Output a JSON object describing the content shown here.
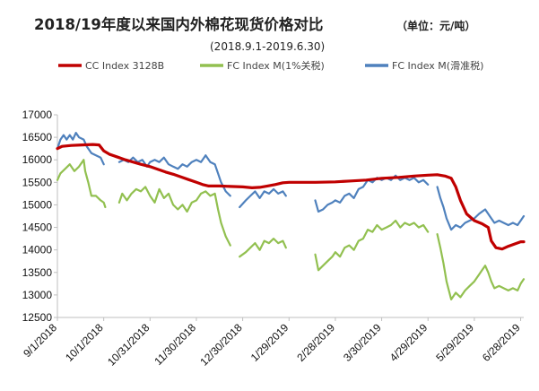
{
  "chart_data": {
    "type": "line",
    "title": "2018/19年度以来国内外棉花现货价格对比",
    "unit": "（单位：元/吨）",
    "subtitle": "(2018.9.1-2019.6.30)",
    "ylim": [
      12500,
      17000
    ],
    "yticks": [
      12500,
      13000,
      13500,
      14000,
      14500,
      15000,
      15500,
      16000,
      16500,
      17000
    ],
    "xlim": [
      "2018-09-01",
      "2019-06-30"
    ],
    "xticks": [
      "9/1/2018",
      "10/1/2018",
      "10/31/2018",
      "11/30/2018",
      "12/30/2018",
      "1/29/2019",
      "2/28/2019",
      "3/30/2019",
      "4/29/2019",
      "5/29/2019",
      "6/28/2019"
    ],
    "grid": false,
    "legend_position": "top",
    "series": [
      {
        "name": "CC Index 3128B",
        "color": "#c00000",
        "points": [
          [
            "2018-09-01",
            16250
          ],
          [
            "2018-09-04",
            16300
          ],
          [
            "2018-09-10",
            16320
          ],
          [
            "2018-09-17",
            16330
          ],
          [
            "2018-09-24",
            16340
          ],
          [
            "2018-09-28",
            16330
          ],
          [
            "2018-10-01",
            16200
          ],
          [
            "2018-10-05",
            16120
          ],
          [
            "2018-10-10",
            16060
          ],
          [
            "2018-10-15",
            16000
          ],
          [
            "2018-10-20",
            15950
          ],
          [
            "2018-10-25",
            15900
          ],
          [
            "2018-10-31",
            15850
          ],
          [
            "2018-11-05",
            15790
          ],
          [
            "2018-11-10",
            15730
          ],
          [
            "2018-11-15",
            15680
          ],
          [
            "2018-11-20",
            15620
          ],
          [
            "2018-11-25",
            15560
          ],
          [
            "2018-11-30",
            15500
          ],
          [
            "2018-12-04",
            15450
          ],
          [
            "2018-12-08",
            15420
          ],
          [
            "2018-12-15",
            15420
          ],
          [
            "2018-12-22",
            15410
          ],
          [
            "2018-12-30",
            15400
          ],
          [
            "2019-01-05",
            15380
          ],
          [
            "2019-01-10",
            15390
          ],
          [
            "2019-01-15",
            15420
          ],
          [
            "2019-01-20",
            15450
          ],
          [
            "2019-01-25",
            15490
          ],
          [
            "2019-01-29",
            15500
          ],
          [
            "2019-02-05",
            15500
          ],
          [
            "2019-02-15",
            15500
          ],
          [
            "2019-02-28",
            15510
          ],
          [
            "2019-03-10",
            15530
          ],
          [
            "2019-03-20",
            15550
          ],
          [
            "2019-03-30",
            15590
          ],
          [
            "2019-04-10",
            15610
          ],
          [
            "2019-04-20",
            15640
          ],
          [
            "2019-04-29",
            15660
          ],
          [
            "2019-05-05",
            15670
          ],
          [
            "2019-05-10",
            15640
          ],
          [
            "2019-05-14",
            15590
          ],
          [
            "2019-05-17",
            15400
          ],
          [
            "2019-05-20",
            15100
          ],
          [
            "2019-05-24",
            14800
          ],
          [
            "2019-05-29",
            14650
          ],
          [
            "2019-06-03",
            14580
          ],
          [
            "2019-06-07",
            14500
          ],
          [
            "2019-06-09",
            14200
          ],
          [
            "2019-06-12",
            14050
          ],
          [
            "2019-06-16",
            14020
          ],
          [
            "2019-06-20",
            14080
          ],
          [
            "2019-06-24",
            14130
          ],
          [
            "2019-06-28",
            14180
          ],
          [
            "2019-06-30",
            14180
          ]
        ]
      },
      {
        "name": "FC Index M(1%关税)",
        "color": "#92c050",
        "points": [
          [
            "2018-09-01",
            15550
          ],
          [
            "2018-09-03",
            15700
          ],
          [
            "2018-09-06",
            15800
          ],
          [
            "2018-09-09",
            15900
          ],
          [
            "2018-09-12",
            15750
          ],
          [
            "2018-09-15",
            15850
          ],
          [
            "2018-09-18",
            16000
          ],
          [
            "2018-09-19",
            15750
          ],
          [
            "2018-09-21",
            15500
          ],
          [
            "2018-09-23",
            15200
          ],
          [
            "2018-09-26",
            15200
          ],
          [
            "2018-09-29",
            15100
          ],
          [
            "2018-10-01",
            15050
          ],
          [
            "2018-10-02",
            14950
          ],
          [
            "2018-10-03",
            null
          ],
          [
            "2018-10-10",
            null
          ],
          [
            "2018-10-11",
            15050
          ],
          [
            "2018-10-13",
            15250
          ],
          [
            "2018-10-16",
            15100
          ],
          [
            "2018-10-19",
            15250
          ],
          [
            "2018-10-22",
            15350
          ],
          [
            "2018-10-25",
            15300
          ],
          [
            "2018-10-28",
            15400
          ],
          [
            "2018-10-31",
            15200
          ],
          [
            "2018-11-03",
            15050
          ],
          [
            "2018-11-06",
            15350
          ],
          [
            "2018-11-09",
            15150
          ],
          [
            "2018-11-12",
            15250
          ],
          [
            "2018-11-15",
            15000
          ],
          [
            "2018-11-18",
            14900
          ],
          [
            "2018-11-21",
            15000
          ],
          [
            "2018-11-24",
            14850
          ],
          [
            "2018-11-27",
            15050
          ],
          [
            "2018-11-30",
            15100
          ],
          [
            "2018-12-03",
            15250
          ],
          [
            "2018-12-06",
            15300
          ],
          [
            "2018-12-09",
            15200
          ],
          [
            "2018-12-12",
            15250
          ],
          [
            "2018-12-14",
            14900
          ],
          [
            "2018-12-16",
            14600
          ],
          [
            "2018-12-19",
            14300
          ],
          [
            "2018-12-22",
            14100
          ],
          [
            "2018-12-24",
            null
          ],
          [
            "2018-12-27",
            null
          ],
          [
            "2018-12-28",
            13850
          ],
          [
            "2019-01-01",
            13950
          ],
          [
            "2019-01-04",
            14050
          ],
          [
            "2019-01-07",
            14150
          ],
          [
            "2019-01-10",
            14000
          ],
          [
            "2019-01-13",
            14200
          ],
          [
            "2019-01-16",
            14150
          ],
          [
            "2019-01-19",
            14250
          ],
          [
            "2019-01-22",
            14150
          ],
          [
            "2019-01-25",
            14200
          ],
          [
            "2019-01-27",
            14050
          ],
          [
            "2019-01-28",
            null
          ],
          [
            "2019-02-14",
            null
          ],
          [
            "2019-02-15",
            13900
          ],
          [
            "2019-02-17",
            13550
          ],
          [
            "2019-02-20",
            13650
          ],
          [
            "2019-02-23",
            13750
          ],
          [
            "2019-02-26",
            13850
          ],
          [
            "2019-02-28",
            13950
          ],
          [
            "2019-03-03",
            13850
          ],
          [
            "2019-03-06",
            14050
          ],
          [
            "2019-03-09",
            14100
          ],
          [
            "2019-03-12",
            14000
          ],
          [
            "2019-03-15",
            14200
          ],
          [
            "2019-03-18",
            14250
          ],
          [
            "2019-03-21",
            14450
          ],
          [
            "2019-03-24",
            14400
          ],
          [
            "2019-03-27",
            14550
          ],
          [
            "2019-03-30",
            14450
          ],
          [
            "2019-04-02",
            14500
          ],
          [
            "2019-04-05",
            14550
          ],
          [
            "2019-04-08",
            14650
          ],
          [
            "2019-04-11",
            14500
          ],
          [
            "2019-04-14",
            14600
          ],
          [
            "2019-04-17",
            14550
          ],
          [
            "2019-04-20",
            14600
          ],
          [
            "2019-04-23",
            14500
          ],
          [
            "2019-04-26",
            14550
          ],
          [
            "2019-04-29",
            14400
          ],
          [
            "2019-04-30",
            null
          ],
          [
            "2019-05-04",
            null
          ],
          [
            "2019-05-05",
            14350
          ],
          [
            "2019-05-07",
            14050
          ],
          [
            "2019-05-09",
            13700
          ],
          [
            "2019-05-11",
            13300
          ],
          [
            "2019-05-14",
            12900
          ],
          [
            "2019-05-17",
            13050
          ],
          [
            "2019-05-20",
            12950
          ],
          [
            "2019-05-23",
            13100
          ],
          [
            "2019-05-26",
            13200
          ],
          [
            "2019-05-29",
            13300
          ],
          [
            "2019-06-01",
            13450
          ],
          [
            "2019-06-03",
            13550
          ],
          [
            "2019-06-05",
            13650
          ],
          [
            "2019-06-07",
            13500
          ],
          [
            "2019-06-09",
            13300
          ],
          [
            "2019-06-11",
            13150
          ],
          [
            "2019-06-14",
            13200
          ],
          [
            "2019-06-17",
            13150
          ],
          [
            "2019-06-20",
            13100
          ],
          [
            "2019-06-23",
            13150
          ],
          [
            "2019-06-26",
            13100
          ],
          [
            "2019-06-28",
            13250
          ],
          [
            "2019-06-30",
            13350
          ]
        ]
      },
      {
        "name": "FC Index M(滑准税)",
        "color": "#4f81bd",
        "points": [
          [
            "2018-09-01",
            16250
          ],
          [
            "2018-09-03",
            16450
          ],
          [
            "2018-09-05",
            16550
          ],
          [
            "2018-09-07",
            16450
          ],
          [
            "2018-09-09",
            16550
          ],
          [
            "2018-09-11",
            16450
          ],
          [
            "2018-09-13",
            16600
          ],
          [
            "2018-09-15",
            16500
          ],
          [
            "2018-09-18",
            16450
          ],
          [
            "2018-09-20",
            16300
          ],
          [
            "2018-09-23",
            16150
          ],
          [
            "2018-09-26",
            16100
          ],
          [
            "2018-09-29",
            16050
          ],
          [
            "2018-10-01",
            15900
          ],
          [
            "2018-10-02",
            null
          ],
          [
            "2018-10-10",
            null
          ],
          [
            "2018-10-11",
            15950
          ],
          [
            "2018-10-14",
            16000
          ],
          [
            "2018-10-17",
            15950
          ],
          [
            "2018-10-20",
            16050
          ],
          [
            "2018-10-23",
            15950
          ],
          [
            "2018-10-26",
            16000
          ],
          [
            "2018-10-29",
            15850
          ],
          [
            "2018-10-31",
            15950
          ],
          [
            "2018-11-03",
            16000
          ],
          [
            "2018-11-06",
            15950
          ],
          [
            "2018-11-09",
            16050
          ],
          [
            "2018-11-12",
            15900
          ],
          [
            "2018-11-15",
            15850
          ],
          [
            "2018-11-18",
            15800
          ],
          [
            "2018-11-21",
            15900
          ],
          [
            "2018-11-24",
            15850
          ],
          [
            "2018-11-27",
            15950
          ],
          [
            "2018-11-30",
            16000
          ],
          [
            "2018-12-03",
            15950
          ],
          [
            "2018-12-06",
            16100
          ],
          [
            "2018-12-09",
            15950
          ],
          [
            "2018-12-12",
            15900
          ],
          [
            "2018-12-14",
            15700
          ],
          [
            "2018-12-16",
            15500
          ],
          [
            "2018-12-19",
            15300
          ],
          [
            "2018-12-22",
            15200
          ],
          [
            "2018-12-24",
            null
          ],
          [
            "2018-12-27",
            null
          ],
          [
            "2018-12-28",
            14950
          ],
          [
            "2019-01-01",
            15100
          ],
          [
            "2019-01-04",
            15200
          ],
          [
            "2019-01-07",
            15300
          ],
          [
            "2019-01-10",
            15150
          ],
          [
            "2019-01-13",
            15300
          ],
          [
            "2019-01-16",
            15250
          ],
          [
            "2019-01-19",
            15350
          ],
          [
            "2019-01-22",
            15250
          ],
          [
            "2019-01-25",
            15300
          ],
          [
            "2019-01-27",
            15200
          ],
          [
            "2019-01-28",
            null
          ],
          [
            "2019-02-14",
            null
          ],
          [
            "2019-02-15",
            15100
          ],
          [
            "2019-02-17",
            14850
          ],
          [
            "2019-02-20",
            14900
          ],
          [
            "2019-02-23",
            15000
          ],
          [
            "2019-02-26",
            15050
          ],
          [
            "2019-02-28",
            15100
          ],
          [
            "2019-03-03",
            15050
          ],
          [
            "2019-03-06",
            15200
          ],
          [
            "2019-03-09",
            15250
          ],
          [
            "2019-03-12",
            15150
          ],
          [
            "2019-03-15",
            15350
          ],
          [
            "2019-03-18",
            15400
          ],
          [
            "2019-03-21",
            15550
          ],
          [
            "2019-03-24",
            15500
          ],
          [
            "2019-03-27",
            15600
          ],
          [
            "2019-03-30",
            15550
          ],
          [
            "2019-04-02",
            15600
          ],
          [
            "2019-04-05",
            15550
          ],
          [
            "2019-04-08",
            15650
          ],
          [
            "2019-04-11",
            15550
          ],
          [
            "2019-04-14",
            15600
          ],
          [
            "2019-04-17",
            15550
          ],
          [
            "2019-04-20",
            15600
          ],
          [
            "2019-04-23",
            15500
          ],
          [
            "2019-04-26",
            15550
          ],
          [
            "2019-04-29",
            15450
          ],
          [
            "2019-04-30",
            null
          ],
          [
            "2019-05-04",
            null
          ],
          [
            "2019-05-05",
            15400
          ],
          [
            "2019-05-07",
            15150
          ],
          [
            "2019-05-09",
            14950
          ],
          [
            "2019-05-11",
            14700
          ],
          [
            "2019-05-14",
            14450
          ],
          [
            "2019-05-17",
            14550
          ],
          [
            "2019-05-20",
            14500
          ],
          [
            "2019-05-23",
            14600
          ],
          [
            "2019-05-26",
            14650
          ],
          [
            "2019-05-29",
            14700
          ],
          [
            "2019-06-01",
            14800
          ],
          [
            "2019-06-03",
            14850
          ],
          [
            "2019-06-05",
            14900
          ],
          [
            "2019-06-07",
            14800
          ],
          [
            "2019-06-09",
            14700
          ],
          [
            "2019-06-11",
            14600
          ],
          [
            "2019-06-14",
            14650
          ],
          [
            "2019-06-17",
            14600
          ],
          [
            "2019-06-20",
            14550
          ],
          [
            "2019-06-23",
            14600
          ],
          [
            "2019-06-26",
            14550
          ],
          [
            "2019-06-28",
            14650
          ],
          [
            "2019-06-30",
            14750
          ]
        ]
      }
    ]
  }
}
